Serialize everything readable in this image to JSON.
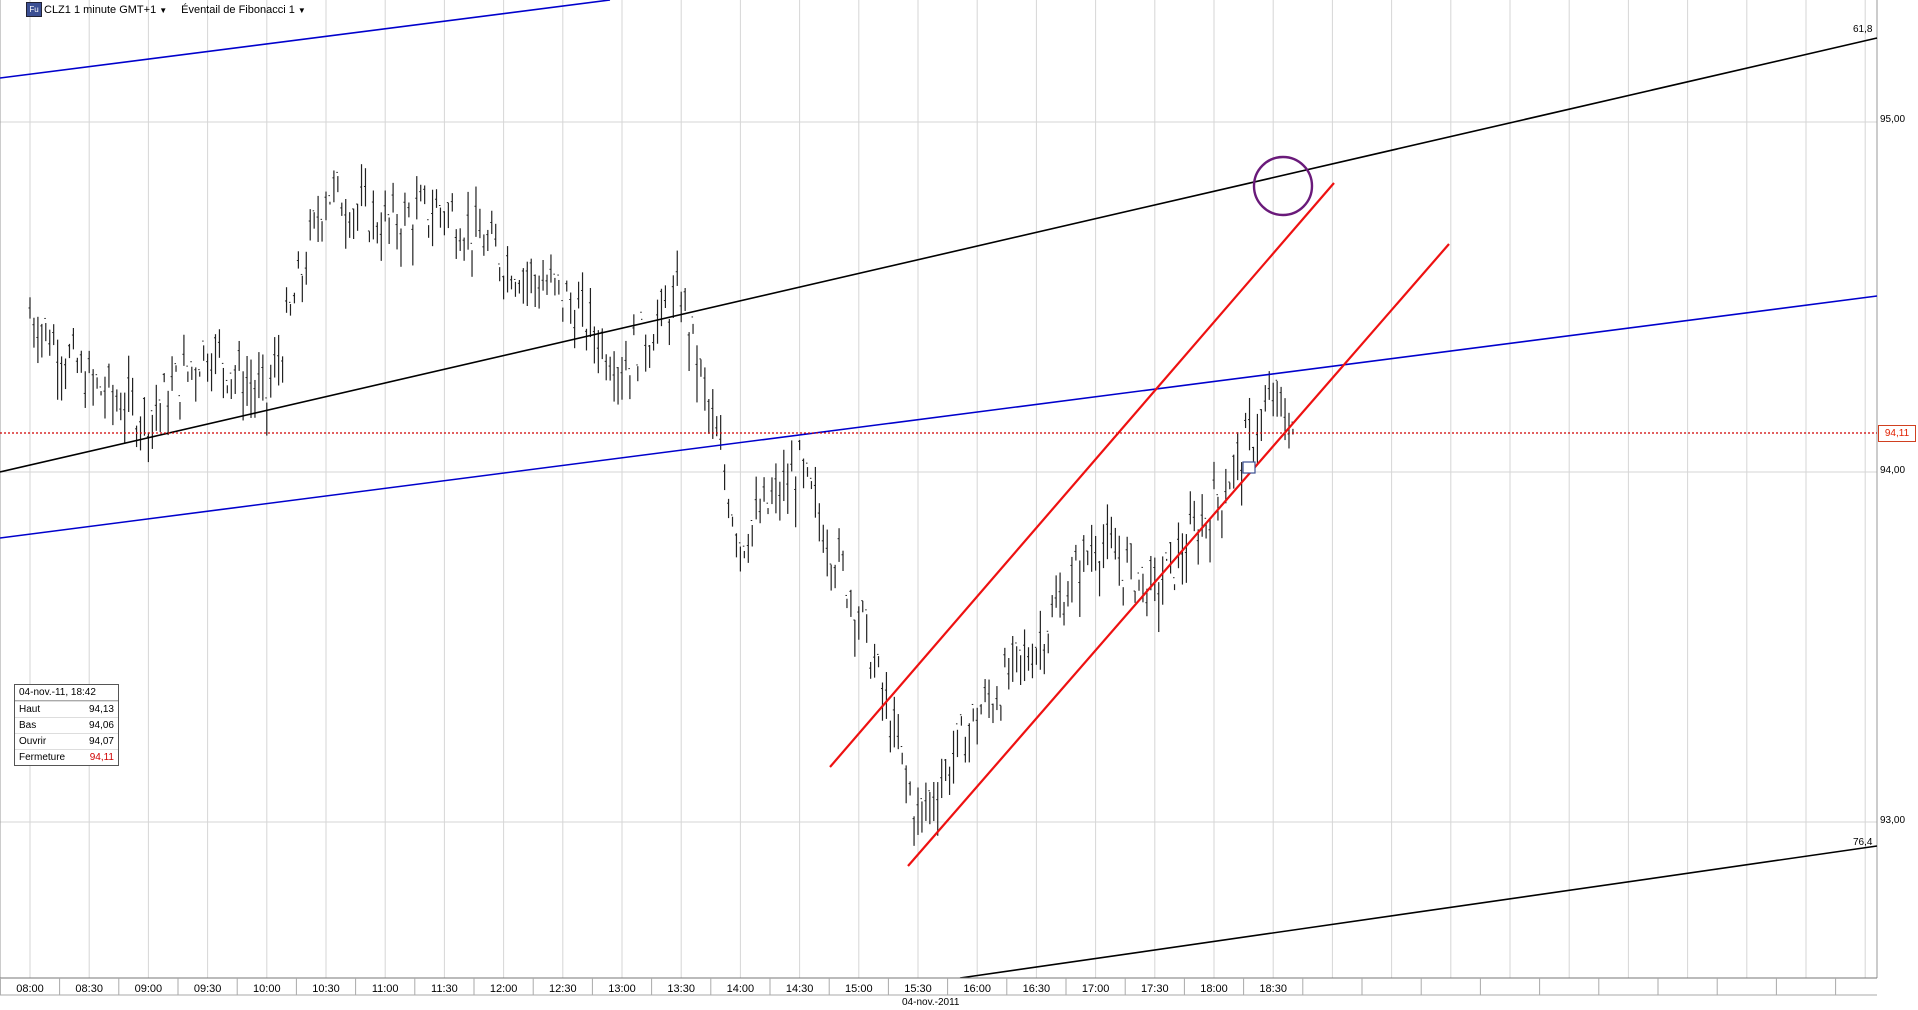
{
  "toolbar": {
    "symbol_label": "CLZ1 1 minute GMT+1",
    "tool_label": "Éventail de Fibonacci 1",
    "app_icon_text": "Fu"
  },
  "info_box": {
    "title": "04-nov.-11, 18:42",
    "rows": [
      {
        "label": "Haut",
        "value": "94,13"
      },
      {
        "label": "Bas",
        "value": "94,06"
      },
      {
        "label": "Ouvrir",
        "value": "94,07"
      },
      {
        "label": "Fermeture",
        "value": "94,11"
      }
    ]
  },
  "price_axis": {
    "labels": [
      "95,00",
      "94,00",
      "93,00"
    ],
    "current_price": "94,11"
  },
  "fib_labels": {
    "upper": "61,8",
    "lower": "76,4"
  },
  "time_axis": {
    "labels": [
      "08:00",
      "08:30",
      "09:00",
      "09:30",
      "10:00",
      "10:30",
      "11:00",
      "11:30",
      "12:00",
      "12:30",
      "13:00",
      "13:30",
      "14:00",
      "14:30",
      "15:00",
      "15:30",
      "16:00",
      "16:30",
      "17:00",
      "17:30",
      "18:00",
      "18:30"
    ],
    "date_label": "04-nov.-2011"
  },
  "colors": {
    "fib_line": "#000000",
    "blue_line": "#0000cc",
    "channel": "#ee1111",
    "price_marker": "#d00000",
    "circle": "#6a1a7a",
    "bars": "#222222",
    "grid": "#d6d6d6"
  },
  "chart_data": {
    "type": "ohlc",
    "symbol": "CLZ1",
    "interval": "1 minute",
    "ylim": [
      92.6,
      95.4
    ],
    "x": [
      "08:00",
      "08:30",
      "09:00",
      "09:30",
      "10:00",
      "10:30",
      "11:00",
      "11:30",
      "12:00",
      "12:30",
      "13:00",
      "13:30",
      "14:00",
      "14:30",
      "15:00",
      "15:30",
      "16:00",
      "16:30",
      "17:00",
      "17:30",
      "18:00",
      "18:30",
      "18:42"
    ],
    "close": [
      94.45,
      94.25,
      94.15,
      94.35,
      94.2,
      94.8,
      94.7,
      94.75,
      94.6,
      94.5,
      94.3,
      94.5,
      93.8,
      94.0,
      93.6,
      93.0,
      93.3,
      93.5,
      93.8,
      93.65,
      93.9,
      94.2,
      94.11
    ],
    "current_price": 94.11,
    "session_high": 94.95,
    "session_low": 92.95
  }
}
